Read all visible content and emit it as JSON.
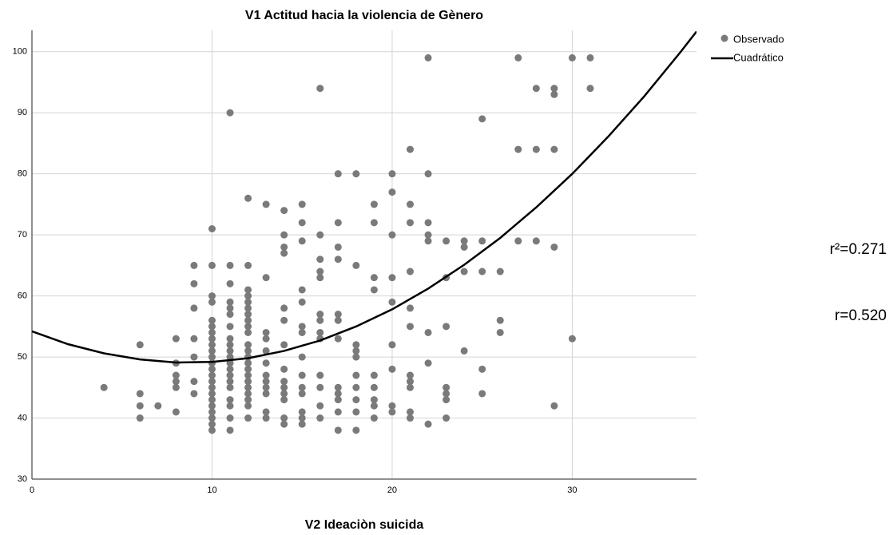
{
  "chart_data": {
    "type": "scatter",
    "title": "V1 Actitud hacia la violencia de Gènero",
    "x_label": "V2 Ideaciòn suicida",
    "xlim": [
      0,
      36.9
    ],
    "ylim": [
      30,
      103.5
    ],
    "xticks": [
      0,
      10,
      20,
      30
    ],
    "yticks": [
      30,
      40,
      50,
      60,
      70,
      80,
      90,
      100
    ],
    "grid": true,
    "legend": "right",
    "annotations": [
      "r²=0.271",
      "r=0.520"
    ],
    "series": [
      {
        "name": "Observado",
        "type": "scatter",
        "color": "#7a7a7a",
        "x": [
          4,
          6,
          6,
          6,
          6,
          7,
          8,
          8,
          8,
          8,
          8,
          8,
          9,
          9,
          9,
          9,
          9,
          9,
          9,
          10,
          10,
          10,
          10,
          10,
          10,
          10,
          10,
          10,
          10,
          10,
          10,
          10,
          10,
          10,
          10,
          10,
          10,
          10,
          10,
          10,
          10,
          10,
          11,
          11,
          11,
          11,
          11,
          11,
          11,
          11,
          11,
          11,
          11,
          11,
          11,
          11,
          11,
          11,
          11,
          11,
          11,
          11,
          12,
          12,
          12,
          12,
          12,
          12,
          12,
          12,
          12,
          12,
          12,
          12,
          12,
          12,
          12,
          12,
          12,
          12,
          12,
          12,
          12,
          12,
          13,
          13,
          13,
          13,
          13,
          13,
          13,
          13,
          13,
          13,
          13,
          13,
          14,
          14,
          14,
          14,
          14,
          14,
          14,
          14,
          14,
          14,
          14,
          14,
          14,
          14,
          15,
          15,
          15,
          15,
          15,
          15,
          15,
          15,
          15,
          15,
          15,
          15,
          15,
          15,
          16,
          16,
          16,
          16,
          16,
          16,
          16,
          16,
          16,
          16,
          16,
          16,
          16,
          17,
          17,
          17,
          17,
          17,
          17,
          17,
          17,
          17,
          17,
          17,
          17,
          18,
          18,
          18,
          18,
          18,
          18,
          18,
          18,
          18,
          18,
          19,
          19,
          19,
          19,
          19,
          19,
          19,
          19,
          19,
          20,
          20,
          20,
          20,
          20,
          20,
          20,
          20,
          20,
          21,
          21,
          21,
          21,
          21,
          21,
          21,
          21,
          21,
          21,
          21,
          22,
          22,
          22,
          22,
          22,
          22,
          22,
          22,
          23,
          23,
          23,
          23,
          23,
          23,
          23,
          24,
          24,
          24,
          24,
          25,
          25,
          25,
          25,
          25,
          26,
          26,
          26,
          27,
          27,
          27,
          28,
          28,
          28,
          29,
          29,
          29,
          29,
          29,
          30,
          30,
          31,
          31
        ],
        "values": [
          45,
          52,
          44,
          42,
          40,
          42,
          53,
          49,
          47,
          46,
          45,
          41,
          65,
          62,
          58,
          53,
          50,
          46,
          44,
          71,
          65,
          60,
          59,
          56,
          55,
          54,
          53,
          52,
          51,
          50,
          49,
          48,
          47,
          46,
          45,
          44,
          43,
          42,
          41,
          40,
          39,
          38,
          90,
          65,
          62,
          59,
          58,
          57,
          55,
          53,
          52,
          51,
          50,
          49,
          48,
          47,
          46,
          45,
          43,
          42,
          40,
          38,
          76,
          65,
          61,
          60,
          59,
          58,
          57,
          56,
          55,
          54,
          52,
          51,
          50,
          49,
          48,
          47,
          46,
          45,
          44,
          43,
          42,
          40,
          75,
          63,
          54,
          53,
          51,
          49,
          47,
          46,
          45,
          44,
          41,
          40,
          74,
          70,
          68,
          67,
          58,
          56,
          52,
          48,
          46,
          45,
          44,
          43,
          40,
          39,
          75,
          72,
          69,
          61,
          59,
          55,
          54,
          50,
          47,
          45,
          44,
          41,
          40,
          39,
          94,
          70,
          66,
          64,
          63,
          57,
          56,
          54,
          53,
          47,
          45,
          42,
          40,
          80,
          72,
          68,
          66,
          57,
          56,
          53,
          45,
          44,
          43,
          41,
          38,
          80,
          65,
          52,
          51,
          50,
          47,
          45,
          43,
          41,
          38,
          75,
          72,
          63,
          61,
          47,
          45,
          43,
          42,
          40,
          80,
          77,
          70,
          63,
          59,
          52,
          48,
          42,
          41,
          84,
          75,
          72,
          64,
          58,
          55,
          47,
          46,
          45,
          41,
          40,
          99,
          80,
          72,
          70,
          69,
          54,
          49,
          39,
          69,
          63,
          55,
          45,
          44,
          43,
          40,
          69,
          68,
          64,
          51,
          89,
          69,
          64,
          48,
          44,
          64,
          56,
          54,
          99,
          84,
          69,
          94,
          84,
          69,
          94,
          93,
          84,
          68,
          42,
          99,
          53,
          99,
          94
        ]
      },
      {
        "name": "Cuadrático",
        "type": "line",
        "color": "#000000",
        "x": [
          0,
          2,
          4,
          6,
          8,
          10,
          12,
          14,
          16,
          18,
          20,
          22,
          24,
          26,
          28,
          30,
          32,
          34,
          36,
          36.9
        ],
        "values": [
          54.2,
          52.1,
          50.6,
          49.6,
          49.1,
          49.2,
          49.8,
          51.0,
          52.7,
          55.0,
          57.8,
          61.2,
          65.1,
          69.5,
          74.5,
          80.0,
          86.1,
          92.7,
          99.9,
          103.3
        ]
      }
    ]
  }
}
